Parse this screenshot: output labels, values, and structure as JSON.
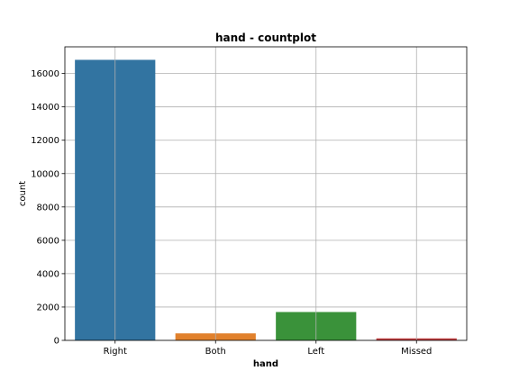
{
  "chart_data": {
    "type": "bar",
    "title": "hand - countplot",
    "xlabel": "hand",
    "ylabel": "count",
    "categories": [
      "Right",
      "Both",
      "Left",
      "Missed"
    ],
    "values": [
      16820,
      420,
      1700,
      120
    ],
    "colors": [
      "#3274a1",
      "#e1812c",
      "#3a923a",
      "#c03d3e"
    ],
    "ylim": [
      0,
      17600
    ],
    "yticks": [
      0,
      2000,
      4000,
      6000,
      8000,
      10000,
      12000,
      14000,
      16000
    ],
    "grid": true
  }
}
